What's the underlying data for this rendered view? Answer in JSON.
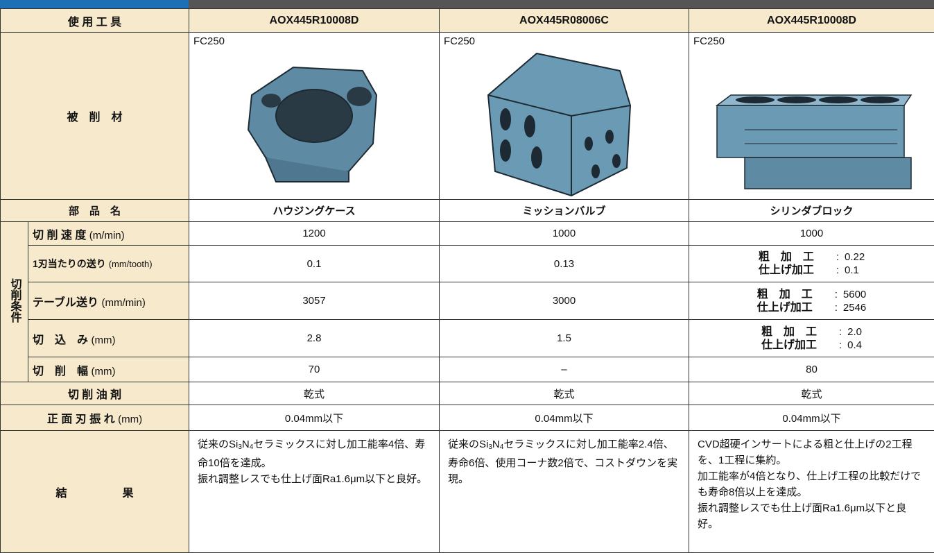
{
  "header": {
    "label": "使 用 工 具",
    "tools": [
      "AOX445R10008D",
      "AOX445R08006C",
      "AOX445R10008D"
    ]
  },
  "material": {
    "label": "被　削　材",
    "values": [
      "FC250",
      "FC250",
      "FC250"
    ]
  },
  "part": {
    "label": "部　品　名",
    "values": [
      "ハウジングケース",
      "ミッションバルブ",
      "シリンダブロック"
    ]
  },
  "conditions": {
    "label": "切削条件",
    "rows": [
      {
        "label": "切 削 速 度",
        "unit": "(m/min)",
        "values": [
          "1200",
          "1000",
          "1000"
        ]
      },
      {
        "label": "1刃当たりの送り",
        "unit": "(mm/tooth)",
        "values": [
          "0.1",
          "0.13",
          [
            {
              "label": "粗　加　工",
              "sep": ":",
              "value": "0.22"
            },
            {
              "label": "仕上げ加工",
              "sep": ":",
              "value": "0.1"
            }
          ]
        ]
      },
      {
        "label": "テーブル送り",
        "unit": "(mm/min)",
        "values": [
          "3057",
          "3000",
          [
            {
              "label": "粗　加　工",
              "sep": ":",
              "value": "5600"
            },
            {
              "label": "仕上げ加工",
              "sep": ":",
              "value": "2546"
            }
          ]
        ]
      },
      {
        "label": "切　込　み",
        "unit": "(mm)",
        "values": [
          "2.8",
          "1.5",
          [
            {
              "label": "粗　加　工",
              "sep": ":",
              "value": "2.0"
            },
            {
              "label": "仕上げ加工",
              "sep": ":",
              "value": "0.4"
            }
          ]
        ]
      },
      {
        "label": "切　削　幅",
        "unit": "(mm)",
        "values": [
          "70",
          "–",
          "80"
        ]
      }
    ]
  },
  "coolant": {
    "label": "切 削 油 剤",
    "values": [
      "乾式",
      "乾式",
      "乾式"
    ]
  },
  "runout": {
    "label": "正 面 刃 振 れ",
    "unit": "(mm)",
    "values": [
      "0.04mm以下",
      "0.04mm以下",
      "0.04mm以下"
    ]
  },
  "result": {
    "label": "結　　　　　果",
    "values": [
      [
        "従来のSi",
        "3",
        "N",
        "4",
        "セラミックスに対し加工能率4倍、寿命10倍を達成。",
        "振れ調整レスでも仕上げ面Ra1.6μm以下と良好。"
      ],
      [
        "従来のSi",
        "3",
        "N",
        "4",
        "セラミックスに対し加工能率2.4倍、寿命6倍、使用コーナ数2倍で、コストダウンを実現。"
      ],
      [
        "CVD超硬インサートによる粗と仕上げの2工程を、1工程に集約。",
        "加工能率が4倍となり、仕上げ工程の比較だけでも寿命8倍以上を達成。",
        "振れ調整レスでも仕上げ面Ra1.6μm以下と良好。"
      ]
    ]
  }
}
